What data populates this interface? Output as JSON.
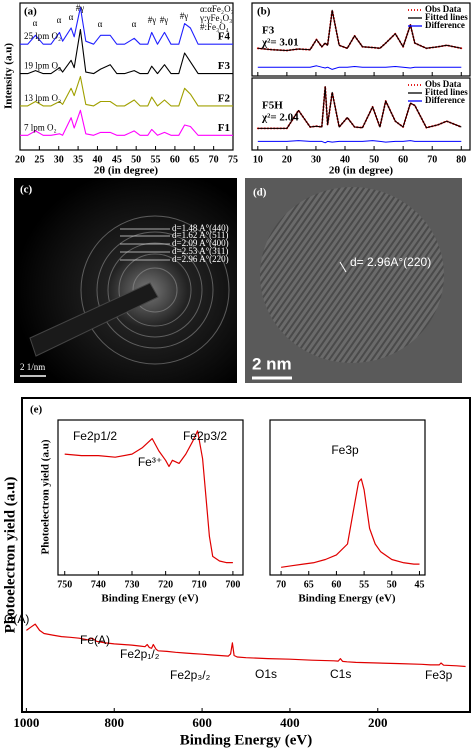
{
  "chart_data": [
    {
      "type": "line",
      "title": "(a)",
      "xlabel": "2θ (in degree)",
      "ylabel": "Intensity (a.u)",
      "xlim": [
        20,
        75
      ],
      "xticks": [
        20,
        25,
        30,
        35,
        40,
        45,
        50,
        55,
        60,
        65,
        70,
        75
      ],
      "ylim": [
        0,
        100
      ],
      "legend": [
        "α:αFe₂O₃",
        "γ:γFe₂O₃",
        "#:Fe₃O₄"
      ],
      "annotations": [
        "α",
        "α",
        "α",
        "#γ",
        "α",
        "α",
        "#γ",
        "#γ",
        "#γ"
      ],
      "x": [
        20,
        22,
        24,
        26,
        28,
        30.2,
        31,
        33.2,
        34,
        35.6,
        37,
        39,
        40.8,
        43.3,
        45,
        47,
        49.5,
        51,
        53,
        54,
        55.5,
        57.3,
        59,
        61,
        62.5,
        64,
        66,
        68,
        70,
        72,
        75
      ],
      "series": [
        {
          "name": "F1",
          "label": "7 lpm O₂",
          "color": "#ff00ff",
          "values": [
            10,
            10,
            13,
            10,
            10,
            11,
            10,
            22,
            15,
            27,
            11,
            10,
            12,
            12,
            10,
            10,
            13,
            10,
            10,
            14,
            10,
            12,
            10,
            10,
            17,
            16,
            10,
            10,
            10,
            10,
            10
          ]
        },
        {
          "name": "F2",
          "label": "13 lpm O₂",
          "color": "#a0a000",
          "values": [
            30,
            30,
            33,
            30,
            30,
            33,
            31,
            42,
            37,
            50,
            31,
            30,
            33,
            33,
            30,
            30,
            34,
            30,
            30,
            36,
            30,
            34,
            30,
            30,
            42,
            38,
            30,
            30,
            30,
            30,
            30
          ]
        },
        {
          "name": "F3",
          "label": "19 lpm O₂",
          "color": "#000000",
          "values": [
            52,
            52,
            54,
            52,
            52,
            56,
            53,
            61,
            56,
            82,
            53,
            52,
            55,
            58,
            52,
            52,
            54,
            52,
            52,
            57,
            52,
            58,
            52,
            52,
            66,
            60,
            52,
            52,
            52,
            52,
            52
          ]
        },
        {
          "name": "F4",
          "label": "25 lpm O₂",
          "color": "#2020ff",
          "values": [
            72,
            72,
            78,
            72,
            72,
            80,
            74,
            83,
            77,
            97,
            74,
            72,
            78,
            78,
            72,
            72,
            76,
            72,
            72,
            80,
            72,
            80,
            72,
            72,
            86,
            83,
            72,
            72,
            72,
            72,
            72
          ]
        }
      ]
    },
    {
      "type": "line",
      "title": "(b)",
      "xlabel": "2θ (in degree)",
      "xlim": [
        8,
        83
      ],
      "xticks": [
        10,
        20,
        30,
        40,
        50,
        60,
        70,
        80
      ],
      "ylim": [
        0,
        100
      ],
      "x": [
        10,
        15,
        20,
        24,
        28,
        30.2,
        32,
        33.2,
        34,
        35.6,
        38,
        40.8,
        43.3,
        46,
        49.5,
        52,
        54,
        57.3,
        60,
        62.5,
        64,
        68,
        72,
        75,
        80
      ],
      "subplots": [
        {
          "label": "F3",
          "stat": "χ²= 3.01",
          "series": [
            {
              "name": "Obs Data",
              "color": "#e00000",
              "style": "dotted",
              "values": [
                38,
                36,
                35,
                37,
                36,
                50,
                40,
                45,
                42,
                90,
                42,
                38,
                55,
                40,
                39,
                38,
                45,
                58,
                40,
                70,
                45,
                38,
                40,
                42,
                38
              ]
            },
            {
              "name": "Fitted lines",
              "color": "#000000",
              "values": [
                38,
                36,
                35,
                37,
                36,
                50,
                40,
                45,
                42,
                90,
                42,
                38,
                55,
                40,
                39,
                38,
                45,
                58,
                40,
                70,
                45,
                38,
                40,
                42,
                38
              ]
            },
            {
              "name": "Difference",
              "color": "#0000ff",
              "values": [
                12,
                12,
                12,
                12,
                12,
                14,
                12,
                11,
                12,
                9,
                12,
                12,
                13,
                12,
                12,
                12,
                12,
                13,
                12,
                11,
                12,
                12,
                12,
                12,
                12
              ]
            }
          ]
        },
        {
          "label": "F5H",
          "stat": "χ²= 2.04",
          "series": [
            {
              "name": "Obs Data",
              "color": "#e00000",
              "style": "dotted",
              "values": [
                30,
                30,
                30,
                55,
                32,
                33,
                32,
                88,
                35,
                80,
                32,
                45,
                32,
                31,
                60,
                32,
                68,
                40,
                32,
                65,
                62,
                31,
                35,
                40,
                32
              ]
            },
            {
              "name": "Fitted lines",
              "color": "#000000",
              "values": [
                30,
                30,
                30,
                55,
                32,
                33,
                32,
                88,
                35,
                80,
                32,
                45,
                32,
                31,
                60,
                32,
                68,
                40,
                32,
                65,
                62,
                31,
                35,
                40,
                32
              ]
            },
            {
              "name": "Difference",
              "color": "#0000ff",
              "values": [
                12,
                12,
                12,
                13,
                12,
                12,
                12,
                10,
                12,
                11,
                12,
                12,
                12,
                12,
                13,
                12,
                11,
                12,
                12,
                13,
                12,
                12,
                12,
                12,
                12
              ]
            }
          ]
        }
      ]
    },
    {
      "type": "line",
      "title": "(e)",
      "xlabel": "Binding Energy (eV)",
      "ylabel": "Photoelectron yield (a.u)",
      "xlim": [
        1010,
        -10
      ],
      "xticks": [
        1000,
        800,
        600,
        400,
        200
      ],
      "ylim": [
        0,
        100
      ],
      "annotations": [
        "O(A)",
        "Fe(A)",
        "Fe2p₁/₂",
        "Fe2p₃/₂",
        "O1s",
        "C1s",
        "Fe3p"
      ],
      "x": [
        1000,
        990,
        980,
        970,
        960,
        940,
        920,
        900,
        880,
        860,
        850,
        840,
        820,
        800,
        780,
        760,
        740,
        730,
        725,
        720,
        715,
        711,
        705,
        700,
        680,
        660,
        640,
        620,
        600,
        580,
        560,
        540,
        535,
        531,
        527,
        520,
        500,
        450,
        400,
        350,
        300,
        290,
        285,
        280,
        270,
        250,
        200,
        150,
        100,
        80,
        60,
        56,
        50,
        20,
        0
      ],
      "series": [
        {
          "color": "#e00000",
          "values": [
            26,
            27,
            28,
            26,
            25,
            24.5,
            24,
            23.8,
            23.5,
            23,
            23.5,
            22.5,
            22,
            21.7,
            21.5,
            21.3,
            21,
            20.8,
            21.5,
            20.5,
            20.3,
            21.5,
            20,
            19.5,
            19.3,
            19,
            18.8,
            18.6,
            18.4,
            18.2,
            18,
            17.8,
            18.5,
            22,
            18,
            17.5,
            17.3,
            17,
            16.8,
            16.5,
            16.3,
            16.2,
            17,
            16.1,
            16,
            15.8,
            15.6,
            15.4,
            15.2,
            15,
            15,
            15.6,
            14.9,
            14.7,
            14.5
          ]
        }
      ]
    },
    {
      "type": "line",
      "xlabel": "Binding Energy (eV)",
      "ylabel": "Photoelectron yield (a.u)",
      "xlim": [
        752,
        697
      ],
      "xticks": [
        750,
        740,
        730,
        720,
        710,
        700
      ],
      "ylim": [
        0,
        100
      ],
      "annotations": [
        "Fe2p1/2",
        "Fe³⁺",
        "Fe2p3/2"
      ],
      "x": [
        750,
        745,
        740,
        735,
        730,
        727,
        724,
        722,
        720,
        719,
        718,
        716,
        714,
        712,
        710.5,
        709,
        708,
        707,
        706,
        704,
        702,
        700
      ],
      "series": [
        {
          "color": "#e00000",
          "values": [
            78,
            77,
            77,
            76,
            78,
            82,
            88,
            80,
            74,
            70,
            74,
            72,
            78,
            86,
            93,
            75,
            50,
            25,
            12,
            9,
            8,
            8
          ]
        }
      ]
    },
    {
      "type": "line",
      "xlabel": "Binding Energy (eV)",
      "xlim": [
        72,
        44
      ],
      "xticks": [
        70,
        65,
        60,
        55,
        50,
        45
      ],
      "ylim": [
        0,
        100
      ],
      "annotations": [
        "Fe3p"
      ],
      "x": [
        70,
        68,
        66,
        64,
        62,
        60,
        58,
        57,
        56,
        55.5,
        55,
        54,
        53,
        52,
        50,
        48,
        46,
        45
      ],
      "series": [
        {
          "color": "#e00000",
          "values": [
            5,
            6,
            7,
            8,
            10,
            13,
            20,
            40,
            60,
            62,
            55,
            30,
            20,
            15,
            10,
            8,
            7,
            7
          ]
        }
      ]
    }
  ],
  "images": [
    {
      "label": "(c)",
      "annotations": [
        "d=1.48 A°(440)",
        "d=1.62 A°(511)",
        "d=2.09 A°(400)",
        "d=2.53 A°(311)",
        "d=2.96 A°(220)"
      ],
      "scale_bar": "2 1/nm"
    },
    {
      "label": "(d)",
      "annotations": [
        "d= 2.96A°(220)"
      ],
      "scale_bar": "2 nm"
    }
  ]
}
